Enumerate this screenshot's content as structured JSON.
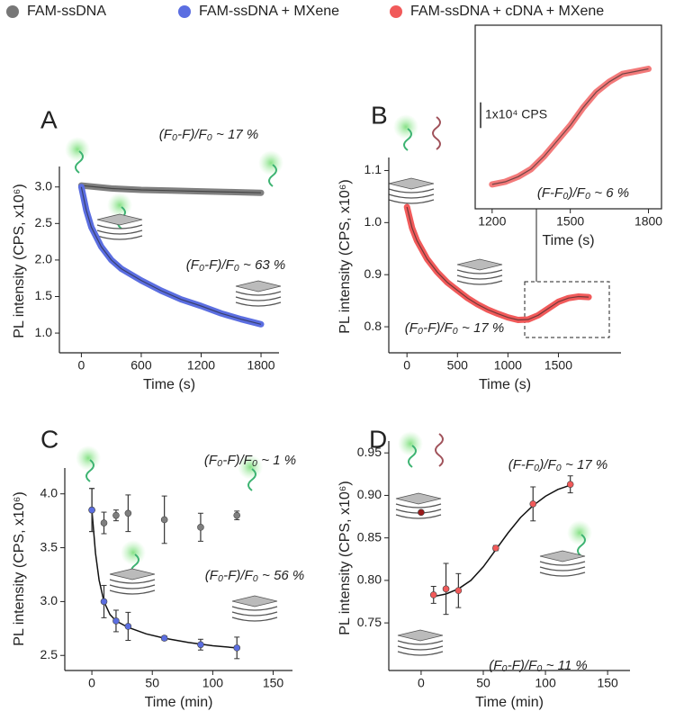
{
  "legend": [
    {
      "name": "FAM-ssDNA",
      "color": "#777777"
    },
    {
      "name": "FAM-ssDNA + MXene",
      "color": "#5b6ee1"
    },
    {
      "name": "FAM-ssDNA + cDNA + MXene",
      "color": "#f15a5a"
    }
  ],
  "chart_data": [
    {
      "type": "line",
      "panel": "A",
      "xlabel": "Time (s)",
      "ylabel": "PL intensity (CPS, x10⁶)",
      "xlim": [
        -220,
        1980
      ],
      "ylim": [
        0.73,
        3.28
      ],
      "xticks": [
        0,
        600,
        1200,
        1800
      ],
      "yticks": [
        {
          "value": 1,
          "label": "1.0"
        },
        1.5,
        {
          "value": 2,
          "label": "2.0"
        },
        2.5,
        {
          "value": 3,
          "label": "3.0"
        }
      ],
      "series": [
        {
          "color": "#7f7f7f",
          "x": [
            0,
            300,
            600,
            900,
            1200,
            1500,
            1800
          ],
          "values": [
            3.02,
            2.98,
            2.96,
            2.95,
            2.94,
            2.93,
            2.92
          ]
        },
        {
          "color": "#5b6ee1",
          "x": [
            0,
            50,
            100,
            200,
            300,
            400,
            600,
            800,
            1000,
            1200,
            1400,
            1600,
            1800
          ],
          "values": [
            3.0,
            2.68,
            2.45,
            2.18,
            2.0,
            1.88,
            1.72,
            1.58,
            1.46,
            1.37,
            1.27,
            1.19,
            1.12
          ]
        }
      ],
      "annotations": [
        "(F₀-F)/F₀ ~ 17 %",
        "(F₀-F)/F₀ ~ 63 %"
      ]
    },
    {
      "type": "line",
      "panel": "B",
      "xlabel": "Time (s)",
      "ylabel": "PL intensity (CPS, x10⁶)",
      "xlim": [
        -180,
        2120
      ],
      "ylim": [
        0.75,
        1.125
      ],
      "xticks": [
        0,
        500,
        1000,
        1500
      ],
      "yticks": [
        0.8,
        0.9,
        {
          "value": 1,
          "label": "1.0"
        },
        1.1
      ],
      "series": [
        {
          "color": "#f15a5a",
          "x": [
            0,
            50,
            100,
            200,
            300,
            400,
            500,
            600,
            700,
            800,
            900,
            1000,
            1100,
            1200,
            1300,
            1400,
            1500,
            1600,
            1700,
            1800
          ],
          "values": [
            1.03,
            0.99,
            0.965,
            0.93,
            0.905,
            0.885,
            0.87,
            0.855,
            0.843,
            0.833,
            0.825,
            0.818,
            0.813,
            0.814,
            0.822,
            0.835,
            0.848,
            0.855,
            0.858,
            0.857
          ]
        }
      ],
      "annotations": [
        "(F₀-F)/F₀ ~ 17 %"
      ]
    },
    {
      "type": "line",
      "frame": true,
      "xlabel": "Time (s)",
      "xlim": [
        1135,
        1850
      ],
      "ylim": [
        0.8035,
        0.875
      ],
      "xticks": [
        1200,
        1500,
        1800
      ],
      "scalebar": {
        "value": 0.01,
        "label": "1x10⁴ CPS"
      },
      "series": [
        {
          "color": "#f37a7a",
          "x": [
            1200,
            1250,
            1300,
            1350,
            1400,
            1450,
            1500,
            1550,
            1600,
            1650,
            1700,
            1750,
            1800
          ],
          "values": [
            0.813,
            0.814,
            0.816,
            0.819,
            0.824,
            0.83,
            0.836,
            0.843,
            0.849,
            0.853,
            0.856,
            0.857,
            0.858
          ]
        }
      ],
      "annotations": [
        "(F-F₀)/F₀ ~ 6 %"
      ]
    },
    {
      "type": "scatter",
      "panel": "C",
      "xlabel": "Time (min)",
      "ylabel": "PL intensity (CPS, x10⁶)",
      "xlim": [
        -22.4,
        166
      ],
      "ylim": [
        2.36,
        4.24
      ],
      "xticks": [
        0,
        50,
        100,
        150
      ],
      "yticks": [
        2.5,
        {
          "value": 3,
          "label": "3.0"
        },
        3.5,
        {
          "value": 4,
          "label": "4.0"
        }
      ],
      "series": [
        {
          "color": "#7f7f7f",
          "x": [
            0,
            10,
            20,
            30,
            60,
            90,
            120
          ],
          "values": [
            3.85,
            3.73,
            3.8,
            3.82,
            3.76,
            3.69,
            3.8
          ],
          "errors": [
            0.2,
            0.1,
            0.05,
            0.17,
            0.22,
            0.13,
            0.04
          ]
        },
        {
          "color": "#5b6ee1",
          "x": [
            0,
            10,
            20,
            30,
            60,
            90,
            120
          ],
          "values": [
            3.85,
            3.0,
            2.82,
            2.77,
            2.66,
            2.6,
            2.57
          ],
          "errors": [
            0.2,
            0.15,
            0.1,
            0.13,
            0.02,
            0.05,
            0.1
          ]
        }
      ],
      "fit": {
        "color": "#111111",
        "x": [
          0,
          3,
          6,
          10,
          15,
          20,
          30,
          45,
          60,
          80,
          100,
          120
        ],
        "values": [
          3.85,
          3.45,
          3.2,
          3.0,
          2.88,
          2.82,
          2.76,
          2.7,
          2.66,
          2.62,
          2.59,
          2.57
        ]
      },
      "annotations": [
        "(F₀-F)/F₀ ~ 1 %",
        "(F₀-F)/F₀ ~ 56 %"
      ]
    },
    {
      "type": "scatter",
      "panel": "D",
      "xlabel": "Time (min)",
      "ylabel": "PL intensity (CPS, x10⁶)",
      "xlim": [
        -26,
        168
      ],
      "ylim": [
        0.694,
        0.964
      ],
      "xticks": [
        0,
        50,
        100,
        150
      ],
      "yticks": [
        0.75,
        {
          "value": 0.8,
          "label": "0.80"
        },
        0.85,
        {
          "value": 0.9,
          "label": "0.90"
        },
        0.95
      ],
      "series": [
        {
          "color": "#9b1b1b",
          "x": [
            0
          ],
          "values": [
            0.88
          ]
        },
        {
          "color": "#f15a5a",
          "x": [
            10,
            20,
            30,
            60,
            90,
            120
          ],
          "values": [
            0.783,
            0.79,
            0.788,
            0.838,
            0.89,
            0.913
          ],
          "errors": [
            0.01,
            0.03,
            0.02,
            0.003,
            0.02,
            0.01
          ]
        }
      ],
      "fit": {
        "color": "#111111",
        "x": [
          10,
          20,
          30,
          40,
          50,
          60,
          70,
          80,
          90,
          100,
          110,
          120
        ],
        "values": [
          0.781,
          0.784,
          0.79,
          0.8,
          0.816,
          0.836,
          0.856,
          0.874,
          0.888,
          0.899,
          0.907,
          0.912
        ]
      },
      "annotations": [
        "(F-F₀)/F₀ ~ 17 %",
        "(F₀-F)/F₀ ~ 11 %"
      ]
    }
  ]
}
